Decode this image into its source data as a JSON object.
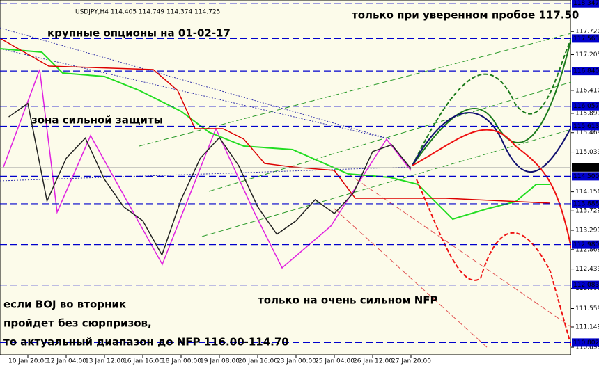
{
  "chart_data": {
    "type": "line",
    "title": "USDJPY,H4  114.405 114.749 114.374 114.725",
    "annotations": [
      "только при уверенном пробое 117.50",
      "крупные опционы на 01-02-17",
      "зона сильной защиты",
      "только на очень сильном NFP",
      "если BOJ во вторник",
      "пройдет без сюрпризов,",
      "то актуальный диапазон до NFP 116.00-114.70"
    ],
    "categories": [
      null,
      "10 Jan 20:00",
      null,
      "12 Jan 04:00",
      null,
      "13 Jan 12:00",
      null,
      "16 Jan 16:00",
      null,
      "18 Jan 00:00",
      null,
      "19 Jan 08:00",
      null,
      "20 Jan 16:00",
      null,
      "23 Jan 00:00",
      null,
      "25 Jan 04:00",
      null,
      "26 Jan 12:00",
      null,
      "27 Jan 20:00"
    ],
    "series": [
      {
        "color": "#222222",
        "values": [
          115.82,
          116.12,
          113.95,
          114.9,
          115.35,
          114.43,
          113.82,
          113.51,
          112.75,
          113.98,
          114.9,
          115.36,
          114.74,
          113.82,
          113.21,
          113.51,
          113.98,
          113.67,
          114.13,
          115.05,
          115.2,
          114.67
        ]
      }
    ],
    "ylim": [
      110.53,
      118.42
    ],
    "yticks": [
      {
        "value": 117.72,
        "label": "117.720"
      },
      117.205,
      {
        "value": 116.41,
        "label": "116.410"
      },
      115.899,
      115.469,
      115.039,
      114.156,
      113.729,
      113.299,
      112.869,
      112.439,
      112.009,
      111.559,
      111.149,
      110.699
    ],
    "levels": [
      118.347,
      117.563,
      {
        "value": 116.84,
        "label": "116.840"
      },
      116.057,
      115.613,
      {
        "value": 114.5,
        "label": "114.500"
      },
      113.888,
      {
        "value": 112.98,
        "label": "112.980"
      },
      112.083,
      110.802
    ],
    "current_price": 114.694,
    "level_color": "#0000cc"
  }
}
